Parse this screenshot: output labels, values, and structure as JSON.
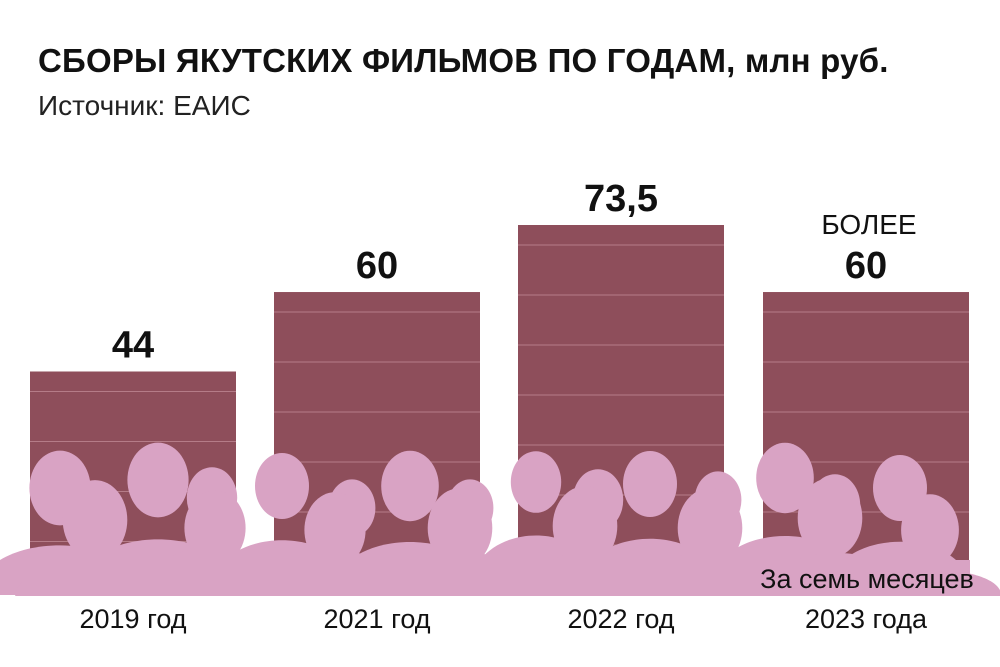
{
  "header": {
    "title": "СБОРЫ ЯКУТСКИХ ФИЛЬМОВ ПО ГОДАМ, млн руб.",
    "subtitle": "Источник: ЕАИС"
  },
  "colors": {
    "bar": "#8e4e5b",
    "bar_line": "#b57c88",
    "silhouette": "#d9a3c4",
    "text": "#111111"
  },
  "chart_data": {
    "type": "bar",
    "title": "СБОРЫ ЯКУТСКИХ ФИЛЬМОВ ПО ГОДАМ, млн руб.",
    "categories": [
      "2019 год",
      "2021 год",
      "2022 год",
      "2023 года"
    ],
    "category_prefix": [
      "",
      "",
      "",
      "За семь месяцев"
    ],
    "values": [
      44,
      60,
      73.5,
      60
    ],
    "value_labels": [
      "44",
      "60",
      "73,5",
      "60"
    ],
    "value_prefix": [
      "",
      "",
      "",
      "БОЛЕЕ"
    ],
    "ylim": [
      0,
      80
    ],
    "grid": false,
    "legend": "none",
    "decoration": "audience-silhouettes"
  }
}
